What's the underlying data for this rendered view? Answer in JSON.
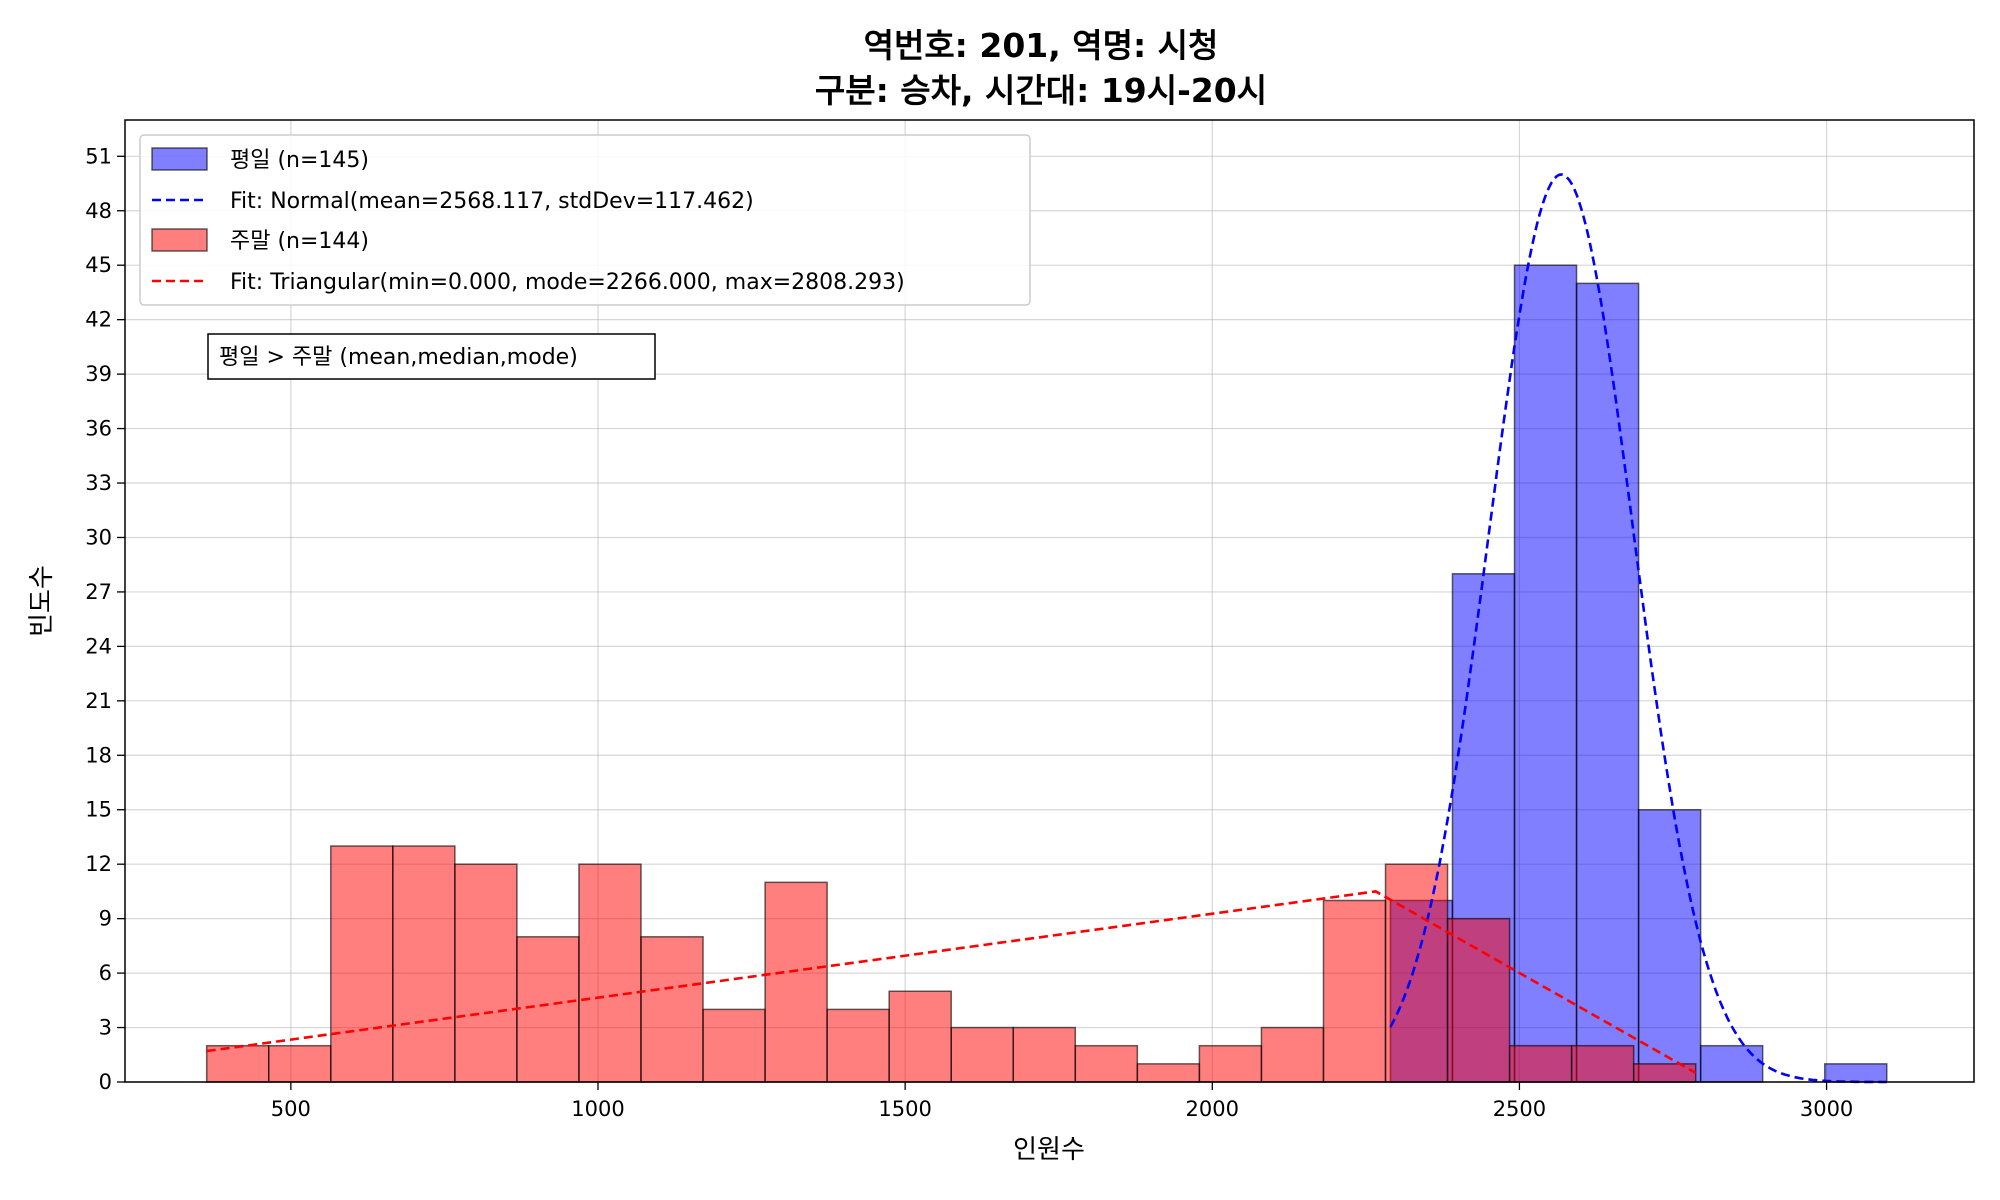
{
  "chart_data": {
    "type": "bar",
    "title_line1": "역번호: 201, 역명: 시청",
    "title_line2": "구분: 승차, 시간대: 19시-20시",
    "xlabel": "인원수",
    "ylabel": "빈도수",
    "xlim": [
      230,
      3240
    ],
    "ylim": [
      0,
      53
    ],
    "x_ticks": [
      500,
      1000,
      1500,
      2000,
      2500,
      3000
    ],
    "y_ticks": [
      0,
      3,
      6,
      9,
      12,
      15,
      18,
      21,
      24,
      27,
      30,
      33,
      36,
      39,
      42,
      45,
      48,
      51
    ],
    "grid": true,
    "legend_position": "top-left",
    "annotation": "평일 > 주말 (mean,median,mode)",
    "series": [
      {
        "name": "평일 (n=145)",
        "color": "#0000ff",
        "bins": [
          {
            "x0": 2290,
            "x1": 2391,
            "count": 10
          },
          {
            "x0": 2391,
            "x1": 2492,
            "count": 28
          },
          {
            "x0": 2492,
            "x1": 2593,
            "count": 45
          },
          {
            "x0": 2593,
            "x1": 2694,
            "count": 44
          },
          {
            "x0": 2694,
            "x1": 2795,
            "count": 15
          },
          {
            "x0": 2795,
            "x1": 2896,
            "count": 2
          },
          {
            "x0": 2997,
            "x1": 3098,
            "count": 1
          }
        ]
      },
      {
        "name": "주말 (n=144)",
        "color": "#ff0000",
        "bins": [
          {
            "x0": 363,
            "x1": 464,
            "count": 2
          },
          {
            "x0": 464,
            "x1": 565,
            "count": 2
          },
          {
            "x0": 565,
            "x1": 666,
            "count": 13
          },
          {
            "x0": 666,
            "x1": 767,
            "count": 13
          },
          {
            "x0": 767,
            "x1": 868,
            "count": 12
          },
          {
            "x0": 868,
            "x1": 969,
            "count": 8
          },
          {
            "x0": 969,
            "x1": 1070,
            "count": 12
          },
          {
            "x0": 1070,
            "x1": 1171,
            "count": 8
          },
          {
            "x0": 1171,
            "x1": 1272,
            "count": 4
          },
          {
            "x0": 1272,
            "x1": 1373,
            "count": 11
          },
          {
            "x0": 1373,
            "x1": 1474,
            "count": 4
          },
          {
            "x0": 1474,
            "x1": 1575,
            "count": 5
          },
          {
            "x0": 1575,
            "x1": 1676,
            "count": 3
          },
          {
            "x0": 1676,
            "x1": 1777,
            "count": 3
          },
          {
            "x0": 1777,
            "x1": 1878,
            "count": 2
          },
          {
            "x0": 1878,
            "x1": 1979,
            "count": 1
          },
          {
            "x0": 1979,
            "x1": 2080,
            "count": 2
          },
          {
            "x0": 2080,
            "x1": 2181,
            "count": 3
          },
          {
            "x0": 2181,
            "x1": 2282,
            "count": 10
          },
          {
            "x0": 2282,
            "x1": 2383,
            "count": 12
          },
          {
            "x0": 2383,
            "x1": 2484,
            "count": 9
          },
          {
            "x0": 2484,
            "x1": 2585,
            "count": 2
          },
          {
            "x0": 2585,
            "x1": 2686,
            "count": 2
          },
          {
            "x0": 2686,
            "x1": 2787,
            "count": 1
          }
        ]
      }
    ],
    "fits": [
      {
        "name": "Fit: Normal(mean=2568.117, stdDev=117.462)",
        "color": "#0000ff",
        "kind": "normal",
        "mean": 2568.117,
        "std": 117.462,
        "peak": 50,
        "x_range": [
          2290,
          3098
        ]
      },
      {
        "name": "Fit: Triangular(min=0.000, mode=2266.000, max=2808.293)",
        "color": "#ff0000",
        "kind": "triangular",
        "points": [
          [
            363,
            1.7
          ],
          [
            2266,
            10.5
          ],
          [
            2787,
            0.5
          ]
        ]
      }
    ]
  }
}
